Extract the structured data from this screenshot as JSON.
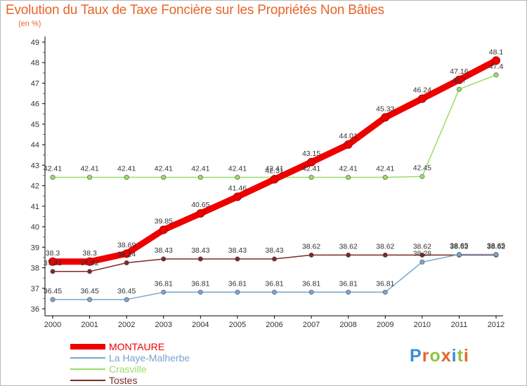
{
  "header": {
    "title": "Evolution du Taux de Taxe Foncière sur les Propriétés Non Bâties",
    "subtitle": "(en %)"
  },
  "colors": {
    "title": "#e8642a",
    "axis": "#000000",
    "grid": "#cccccc",
    "label": "#333333"
  },
  "logo": {
    "text": "Proxiti",
    "letters": [
      "P",
      "r",
      "o",
      "x",
      "i",
      "t",
      "i"
    ],
    "colors": [
      "#3a8dd6",
      "#e8642a",
      "#8cc63f",
      "#e8642a",
      "#3a8dd6",
      "#8cc63f",
      "#e8642a"
    ]
  },
  "chart_data": {
    "type": "line",
    "title": "Evolution du Taux de Taxe Foncière sur les Propriétés Non Bâties",
    "ylabel": "(en %)",
    "xlabel": "",
    "x": [
      "2000",
      "2001",
      "2002",
      "2003",
      "2004",
      "2005",
      "2006",
      "2007",
      "2008",
      "2009",
      "2010",
      "2011",
      "2012"
    ],
    "ylim": [
      36,
      49
    ],
    "yticks": [
      "36",
      "37",
      "38",
      "39",
      "40",
      "41",
      "42",
      "43",
      "44",
      "45",
      "46",
      "47",
      "48",
      "49"
    ],
    "grid": false,
    "legend_position": "bottom-left",
    "series": [
      {
        "name": "MONTAURE",
        "color": "#ee0000",
        "values": [
          38.3,
          38.3,
          38.69,
          39.85,
          40.65,
          41.46,
          42.31,
          43.15,
          44.01,
          45.33,
          46.24,
          47.16,
          48.1
        ],
        "labels": [
          "38.3",
          "38.3",
          "38.69",
          "39.85",
          "40.65",
          "41.46",
          "42.31",
          "43.15",
          "44.01",
          "45.33",
          "46.24",
          "47.16",
          "48.1"
        ]
      },
      {
        "name": "La Haye-Malherbe",
        "color": "#7aa5cc",
        "values": [
          36.45,
          36.45,
          36.45,
          36.81,
          36.81,
          36.81,
          36.81,
          36.81,
          36.81,
          36.81,
          38.28,
          38.65,
          38.65
        ],
        "labels": [
          "36.45",
          "36.45",
          "36.45",
          "36.81",
          "36.81",
          "36.81",
          "36.81",
          "36.81",
          "36.81",
          "36.81",
          "38.28",
          "38.65",
          "38.65"
        ]
      },
      {
        "name": "Crasville",
        "color": "#99dd66",
        "values": [
          42.41,
          42.41,
          42.41,
          42.41,
          42.41,
          42.41,
          42.41,
          42.41,
          42.41,
          42.41,
          42.45,
          46.7,
          47.4
        ],
        "labels": [
          "42.41",
          "42.41",
          "42.41",
          "42.41",
          "42.41",
          "42.41",
          "42.41",
          "42.41",
          "42.41",
          "42.41",
          "42.45",
          "46.7",
          "47.4"
        ]
      },
      {
        "name": "Tostes",
        "color": "#7a2a2a",
        "values": [
          37.82,
          37.82,
          38.24,
          38.43,
          38.43,
          38.43,
          38.43,
          38.62,
          38.62,
          38.62,
          38.62,
          38.62,
          38.62
        ],
        "labels": [
          "37.82",
          "37.82",
          "38.24",
          "38.43",
          "38.43",
          "38.43",
          "38.43",
          "38.62",
          "38.62",
          "38.62",
          "38.62",
          "38.62",
          "38.62"
        ]
      }
    ]
  }
}
